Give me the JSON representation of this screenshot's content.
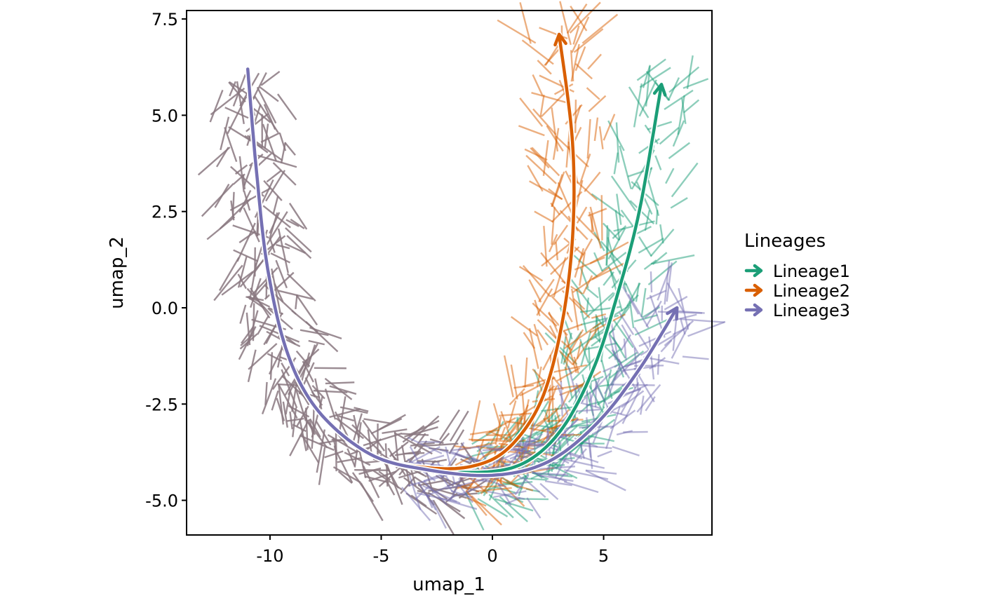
{
  "chart_data": {
    "type": "line",
    "title": "",
    "xlabel": "umap_1",
    "ylabel": "umap_2",
    "xlim": [
      -13.75,
      9.87
    ],
    "ylim": [
      -5.9,
      7.72
    ],
    "xticks": [
      -10,
      -5,
      0,
      5
    ],
    "xtick_labels": [
      "-10",
      "-5",
      "0",
      "5"
    ],
    "yticks": [
      -5,
      -2.5,
      0,
      2.5,
      5,
      7.5
    ],
    "ytick_labels": [
      "-5.0",
      "-2.5",
      "0.0",
      "2.5",
      "5.0",
      "7.5"
    ],
    "grid": false,
    "legend": {
      "title": "Lineages",
      "placement": "right",
      "entries": [
        "Lineage1",
        "Lineage2",
        "Lineage3"
      ]
    },
    "series": [
      {
        "name": "Lineage1",
        "color": "#1B9E77",
        "points": [
          [
            -11.0,
            6.2
          ],
          [
            -10.6,
            3.5
          ],
          [
            -10.1,
            1.0
          ],
          [
            -9.2,
            -1.2
          ],
          [
            -7.8,
            -2.7
          ],
          [
            -5.5,
            -3.8
          ],
          [
            -3,
            -4.2
          ],
          [
            0,
            -4.25
          ],
          [
            1.8,
            -3.9
          ],
          [
            3.3,
            -3.0
          ],
          [
            4.6,
            -1.5
          ],
          [
            5.6,
            0.3
          ],
          [
            6.6,
            2.5
          ],
          [
            7.6,
            5.8
          ]
        ]
      },
      {
        "name": "Lineage2",
        "color": "#D95F02",
        "points": [
          [
            -11.0,
            6.2
          ],
          [
            -10.6,
            3.5
          ],
          [
            -10.1,
            1.0
          ],
          [
            -9.2,
            -1.2
          ],
          [
            -7.8,
            -2.7
          ],
          [
            -5.5,
            -3.8
          ],
          [
            -3,
            -4.15
          ],
          [
            -0.8,
            -4.1
          ],
          [
            0.8,
            -3.6
          ],
          [
            2.2,
            -2.4
          ],
          [
            3.1,
            -0.5
          ],
          [
            3.6,
            1.8
          ],
          [
            3.6,
            4.3
          ],
          [
            3.0,
            7.1
          ]
        ]
      },
      {
        "name": "Lineage3",
        "color": "#7570B3",
        "points": [
          [
            -11.0,
            6.2
          ],
          [
            -10.6,
            3.5
          ],
          [
            -10.1,
            1.0
          ],
          [
            -9.2,
            -1.2
          ],
          [
            -7.8,
            -2.7
          ],
          [
            -5.5,
            -3.8
          ],
          [
            -3,
            -4.2
          ],
          [
            0,
            -4.35
          ],
          [
            2.5,
            -4.0
          ],
          [
            4.7,
            -3.0
          ],
          [
            6.6,
            -1.6
          ],
          [
            8.3,
            0.0
          ]
        ]
      }
    ]
  }
}
